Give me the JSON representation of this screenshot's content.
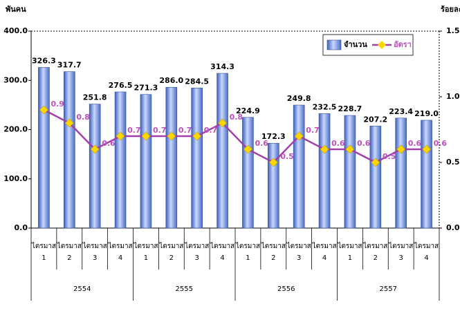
{
  "chart_data": {
    "type": "bar-line",
    "ylabel": "พันคน",
    "y2label": "ร้อยละ",
    "categories": [
      [
        "ไตรมาส",
        "1"
      ],
      [
        "ไตรมาส",
        "2"
      ],
      [
        "ไตรมาส",
        "3"
      ],
      [
        "ไตรมาส",
        "4"
      ],
      [
        "ไตรมาส",
        "1"
      ],
      [
        "ไตรมาส",
        "2"
      ],
      [
        "ไตรมาส",
        "3"
      ],
      [
        "ไตรมาส",
        "4"
      ],
      [
        "ไตรมาส",
        "1"
      ],
      [
        "ไตรมาส",
        "2"
      ],
      [
        "ไตรมาส",
        "3"
      ],
      [
        "ไตรมาส",
        "4"
      ],
      [
        "ไตรมาส",
        "1"
      ],
      [
        "ไตรมาส",
        "2"
      ],
      [
        "ไตรมาส",
        "3"
      ],
      [
        "ไตรมาส",
        "4"
      ]
    ],
    "x_groups": [
      "2554",
      "2555",
      "2556",
      "2557"
    ],
    "series": [
      {
        "name": "จำนวน",
        "color": "#6f8fd8",
        "values": [
          326.3,
          317.7,
          251.8,
          276.5,
          271.3,
          286.0,
          284.5,
          314.3,
          224.9,
          172.3,
          249.8,
          232.5,
          228.7,
          207.2,
          223.4,
          219.0
        ],
        "value_labels": [
          "326.3",
          "317.7",
          "251.8",
          "276.5",
          "271.3",
          "286.0",
          "284.5",
          "314.3",
          "224.9",
          "172.3",
          "249.8",
          "232.5",
          "228.7",
          "207.2",
          "223.4",
          "219.0"
        ]
      },
      {
        "name": "อัตรา",
        "color": "#a040a8",
        "marker_color": "#ffd700",
        "axis": "y2",
        "values": [
          0.9,
          0.8,
          0.6,
          0.7,
          0.7,
          0.7,
          0.7,
          0.8,
          0.6,
          0.5,
          0.7,
          0.6,
          0.6,
          0.5,
          0.6,
          0.6
        ]
      }
    ],
    "ylim": [
      0,
      400
    ],
    "yticks": [
      {
        "value": 0,
        "label": "0.0"
      },
      {
        "value": 100,
        "label": "100.0"
      },
      {
        "value": 200,
        "label": "200.0"
      },
      {
        "value": 300,
        "label": "300.0"
      },
      {
        "value": 400,
        "label": "400.0"
      }
    ],
    "y2lim": [
      0,
      1.5
    ],
    "y2ticks": [
      {
        "value": 0,
        "label": "0.0"
      },
      0.5,
      {
        "value": 1,
        "label": "1.0"
      },
      1.5
    ],
    "legend": "upper right"
  }
}
